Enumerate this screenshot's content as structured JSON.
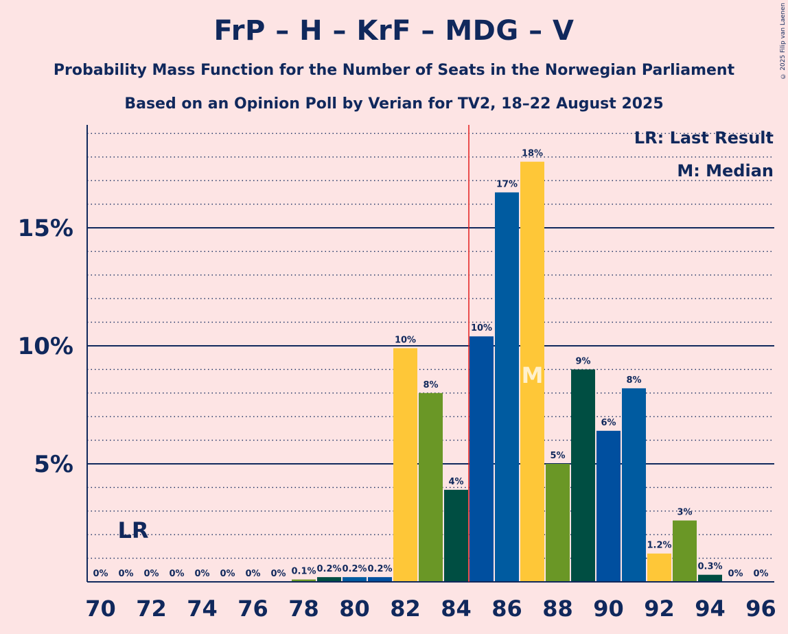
{
  "title": "FrP – H – KrF – MDG – V",
  "subtitle1": "Probability Mass Function for the Number of Seats in the Norwegian Parliament",
  "subtitle2": "Based on an Opinion Poll by Verian for TV2, 18–22 August 2025",
  "copyright": "© 2025 Filip van Laenen",
  "legend": {
    "lr": "LR: Last Result",
    "median": "M: Median"
  },
  "markers": {
    "lr_label": "LR",
    "median_label": "M"
  },
  "colors": {
    "background": "#FDE4E4",
    "text": "#10285C",
    "FrP": "#004F9F",
    "H": "#005BA0",
    "KrF": "#FEC738",
    "MDG": "#6A9726",
    "V": "#004E42",
    "majority_line": "#E31C1C"
  },
  "chart_data": {
    "type": "bar",
    "x": [
      70,
      71,
      72,
      73,
      74,
      75,
      76,
      77,
      78,
      79,
      80,
      81,
      82,
      83,
      84,
      85,
      86,
      87,
      88,
      89,
      90,
      91,
      92,
      93,
      94,
      95,
      96
    ],
    "values": [
      0,
      0,
      0,
      0,
      0,
      0,
      0,
      0,
      0.1,
      0.2,
      0.2,
      0.2,
      9.9,
      8.0,
      3.9,
      10.4,
      16.5,
      17.8,
      5.0,
      9.0,
      6.4,
      8.2,
      1.2,
      2.6,
      0.3,
      0,
      0
    ],
    "labels": [
      "0%",
      "0%",
      "0%",
      "0%",
      "0%",
      "0%",
      "0%",
      "0%",
      "0.1%",
      "0.2%",
      "0.2%",
      "0.2%",
      "10%",
      "8%",
      "4%",
      "10%",
      "17%",
      "18%",
      "5%",
      "9%",
      "6%",
      "8%",
      "1.2%",
      "3%",
      "0.3%",
      "0%",
      "0%"
    ],
    "bar_colors": [
      "V",
      "FrP",
      "KrF",
      "MDG",
      "V",
      "FrP",
      "KrF",
      "MDG",
      "MDG",
      "V",
      "H",
      "FrP",
      "KrF",
      "MDG",
      "V",
      "FrP",
      "H",
      "KrF",
      "MDG",
      "V",
      "FrP",
      "H",
      "KrF",
      "MDG",
      "V",
      "FrP",
      "KrF"
    ],
    "x_tick_labels": [
      "70",
      "72",
      "74",
      "76",
      "78",
      "80",
      "82",
      "84",
      "86",
      "88",
      "90",
      "92",
      "94",
      "96"
    ],
    "y_tick_labels": [
      "5%",
      "10%",
      "15%"
    ],
    "y_ticks": [
      5,
      10,
      15
    ],
    "ylim": [
      0,
      19.4
    ],
    "xlim": [
      69.5,
      96.5
    ],
    "last_result": 71,
    "median": 87,
    "majority_at": 84.5,
    "minor_grid_step": 1
  }
}
